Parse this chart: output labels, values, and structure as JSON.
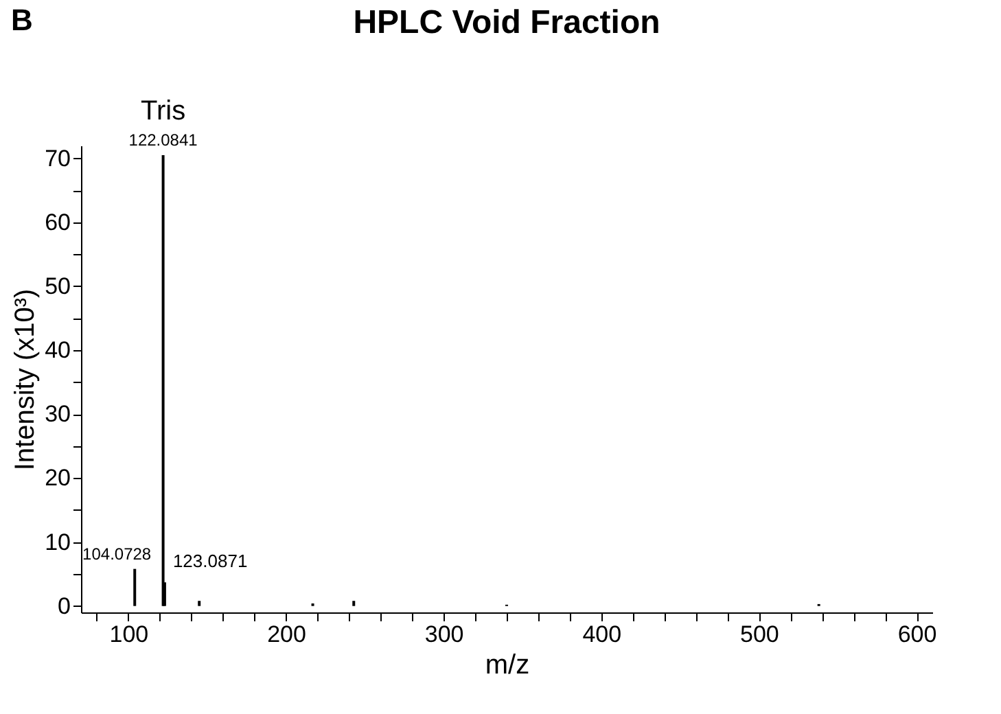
{
  "chart_data": {
    "type": "bar",
    "title": "HPLC Void Fraction",
    "xlabel": "m/z",
    "ylabel": "Intensity (x10³)",
    "x": [
      104.0728,
      122.0841,
      123.0871,
      145,
      217,
      243,
      340,
      538
    ],
    "values": [
      5.8,
      70.5,
      3.7,
      0.8,
      0.4,
      0.8,
      0.2,
      0.3
    ],
    "color": "#000000",
    "xlim": [
      70,
      610
    ],
    "ylim": [
      -1,
      72
    ],
    "xticks": [
      {
        "value": 80,
        "label": null
      },
      100,
      {
        "value": 120,
        "label": null
      },
      {
        "value": 140,
        "label": null
      },
      {
        "value": 160,
        "label": null
      },
      {
        "value": 180,
        "label": null
      },
      200,
      {
        "value": 220,
        "label": null
      },
      {
        "value": 240,
        "label": null
      },
      {
        "value": 260,
        "label": null
      },
      {
        "value": 280,
        "label": null
      },
      300,
      {
        "value": 320,
        "label": null
      },
      {
        "value": 340,
        "label": null
      },
      {
        "value": 360,
        "label": null
      },
      {
        "value": 380,
        "label": null
      },
      400,
      {
        "value": 420,
        "label": null
      },
      {
        "value": 440,
        "label": null
      },
      {
        "value": 460,
        "label": null
      },
      {
        "value": 480,
        "label": null
      },
      500,
      {
        "value": 520,
        "label": null
      },
      {
        "value": 540,
        "label": null
      },
      {
        "value": 560,
        "label": null
      },
      {
        "value": 580,
        "label": null
      },
      600
    ],
    "yticks": [
      0,
      {
        "value": 5,
        "label": null
      },
      10,
      {
        "value": 15,
        "label": null
      },
      20,
      {
        "value": 25,
        "label": null
      },
      30,
      {
        "value": 35,
        "label": null
      },
      40,
      {
        "value": 45,
        "label": null
      },
      50,
      {
        "value": 55,
        "label": null
      },
      60,
      {
        "value": 65,
        "label": null
      },
      70
    ],
    "annotations": [
      "B",
      {
        "text": "122.0841",
        "x": 122.0841,
        "y": 70.5
      },
      {
        "text": "Tris",
        "x": 122.0841,
        "y": 70.5
      },
      {
        "text": "104.0728",
        "x": 104.0728,
        "y": 5.8
      },
      {
        "text": "123.0871",
        "x": 123.0871,
        "y": 3.7
      }
    ],
    "grid": false
  }
}
